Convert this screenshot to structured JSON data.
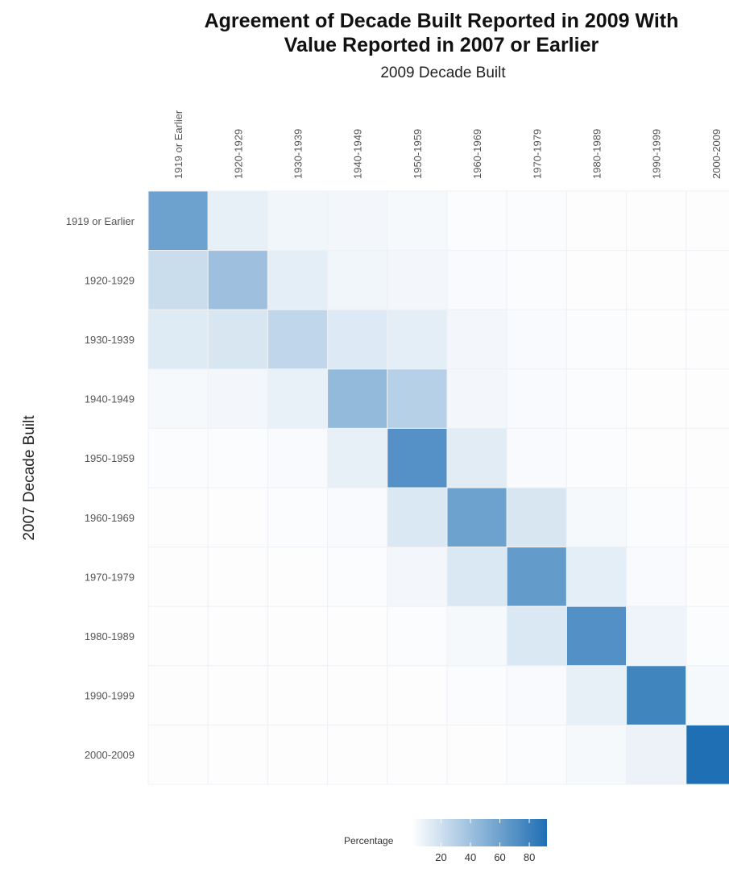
{
  "chart_data": {
    "type": "heatmap",
    "title_lines": [
      "Agreement of Decade Built Reported in 2009 With",
      "Value Reported in 2007 or Earlier"
    ],
    "xlabel": "2009 Decade Built",
    "ylabel": "2007 Decade Built",
    "x_categories": [
      "1919 or Earlier",
      "1920-1929",
      "1930-1939",
      "1940-1949",
      "1950-1959",
      "1960-1969",
      "1970-1979",
      "1980-1989",
      "1990-1999",
      "2000-2009"
    ],
    "y_categories": [
      "1919 or Earlier",
      "1920-1929",
      "1930-1939",
      "1940-1949",
      "1950-1959",
      "1960-1969",
      "1970-1979",
      "1980-1989",
      "1990-1999",
      "2000-2009"
    ],
    "values": [
      [
        60,
        10,
        6,
        5,
        4,
        2,
        2,
        1,
        1,
        1
      ],
      [
        22,
        40,
        11,
        6,
        5,
        3,
        2,
        1,
        1,
        1
      ],
      [
        13,
        16,
        26,
        14,
        11,
        5,
        3,
        2,
        1,
        1
      ],
      [
        4,
        5,
        9,
        44,
        30,
        5,
        3,
        2,
        1,
        1
      ],
      [
        2,
        2,
        3,
        10,
        70,
        12,
        3,
        2,
        1,
        1
      ],
      [
        1,
        1,
        2,
        3,
        15,
        60,
        16,
        4,
        2,
        1
      ],
      [
        1,
        1,
        1,
        2,
        5,
        15,
        64,
        11,
        3,
        1
      ],
      [
        1,
        1,
        1,
        1,
        2,
        4,
        15,
        71,
        7,
        2
      ],
      [
        1,
        1,
        1,
        1,
        1,
        2,
        3,
        10,
        78,
        4
      ],
      [
        1,
        1,
        1,
        1,
        1,
        1,
        2,
        4,
        8,
        92
      ]
    ],
    "legend": {
      "title": "Percentage",
      "ticks": [
        20,
        40,
        60,
        80
      ],
      "range": [
        0,
        92
      ],
      "color_low": "#ffffff",
      "color_high": "#1f6fb4"
    },
    "grid": true
  }
}
